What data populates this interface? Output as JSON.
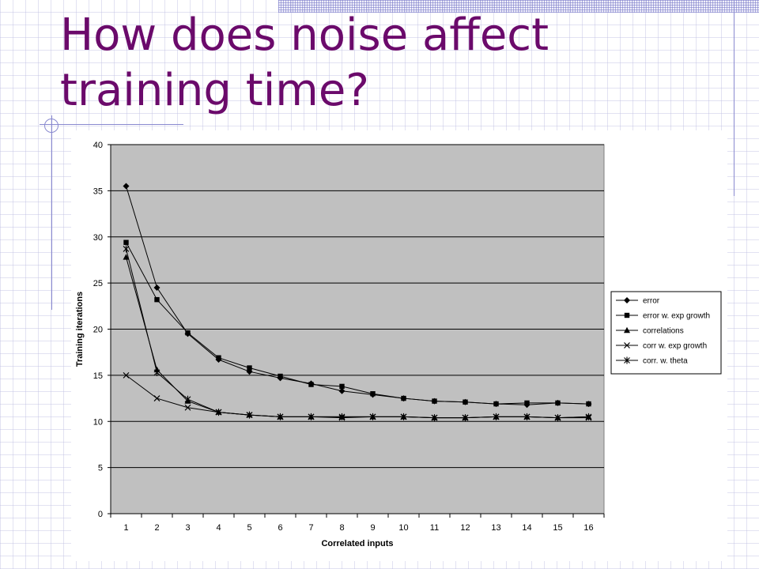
{
  "slide": {
    "title": "How does noise affect training time?"
  },
  "chart_data": {
    "type": "line",
    "title": "",
    "xlabel": "Correlated inputs",
    "ylabel": "Training iterations",
    "x": [
      1,
      2,
      3,
      4,
      5,
      6,
      7,
      8,
      9,
      10,
      11,
      12,
      13,
      14,
      15,
      16
    ],
    "ylim": [
      0,
      40
    ],
    "yticks": [
      0,
      5,
      10,
      15,
      20,
      25,
      30,
      35,
      40
    ],
    "grid": "horizontal",
    "legend_position": "right",
    "plot_background": "#c0c0c0",
    "line_color": "#000000",
    "series": [
      {
        "name": "error",
        "marker": "diamond",
        "values": [
          35.5,
          24.5,
          19.5,
          16.7,
          15.4,
          14.7,
          14.1,
          13.3,
          12.9,
          12.5,
          12.2,
          12.1,
          11.9,
          11.8,
          12.0,
          11.9
        ]
      },
      {
        "name": "error w. exp growth",
        "marker": "square",
        "values": [
          29.4,
          23.2,
          19.6,
          16.9,
          15.8,
          14.9,
          14.0,
          13.8,
          13.0,
          12.5,
          12.2,
          12.1,
          11.9,
          12.0,
          12.0,
          11.9
        ]
      },
      {
        "name": "correlations",
        "marker": "triangle",
        "values": [
          27.8,
          15.6,
          12.2,
          11.0,
          10.7,
          10.5,
          10.5,
          10.5,
          10.5,
          10.5,
          10.4,
          10.4,
          10.5,
          10.5,
          10.4,
          10.5
        ]
      },
      {
        "name": "corr w. exp growth",
        "marker": "x",
        "values": [
          15.0,
          12.5,
          11.5,
          11.0,
          10.7,
          10.5,
          10.5,
          10.4,
          10.5,
          10.5,
          10.4,
          10.4,
          10.5,
          10.5,
          10.4,
          10.4
        ]
      },
      {
        "name": "corr. w. theta",
        "marker": "star",
        "values": [
          28.7,
          15.3,
          12.4,
          11.0,
          10.7,
          10.5,
          10.5,
          10.5,
          10.5,
          10.5,
          10.4,
          10.4,
          10.5,
          10.5,
          10.4,
          10.5
        ]
      }
    ]
  }
}
